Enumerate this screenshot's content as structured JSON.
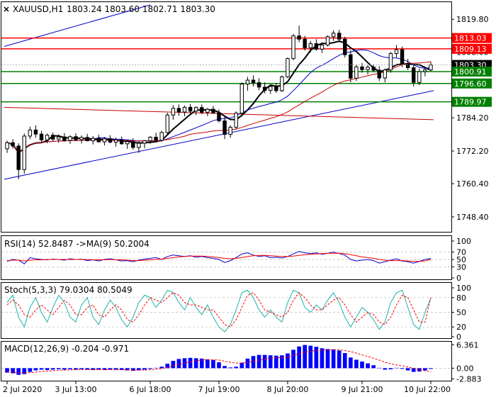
{
  "header": {
    "symbol": "XAUUSD,H1",
    "ohlc": "1803.24 1803.60 1802.71 1803.30"
  },
  "colors": {
    "background": "#ffffff",
    "candle": "#000000",
    "ma_fast": "#000000",
    "ma_mid": "#0000cc",
    "ma_slow": "#cc0000",
    "resistance": "#ff0000",
    "support": "#008000",
    "trend_channel": "#0000cc",
    "macd_hist": "#0000ff",
    "signal": "#ff0000",
    "stoch_main": "#20b2aa",
    "last_price": "#000000"
  },
  "chart_data": [
    {
      "type": "candlestick",
      "panel": "price",
      "symbol": "XAUUSD",
      "timeframe": "H1",
      "ohlc_last": {
        "open": 1803.24,
        "high": 1803.6,
        "low": 1802.71,
        "close": 1803.3
      },
      "ylim": [
        1743,
        1826
      ],
      "y_ticks": [
        "1819.80",
        "1808.00",
        "1796.20",
        "1784.20",
        "1772.20",
        "1760.40",
        "1748.40"
      ],
      "x_ticks": [
        "2 Jul 2020",
        "3 Jul 13:00",
        "6 Jul 18:00",
        "7 Jul 19:00",
        "8 Jul 20:00",
        "9 Jul 21:00",
        "10 Jul 22:00"
      ],
      "last_price_label": "1803.30",
      "levels": [
        {
          "label": "1813.03",
          "value": 1813.03,
          "color": "#ff0000",
          "kind": "resistance"
        },
        {
          "label": "1809.13",
          "value": 1809.13,
          "color": "#ff0000",
          "kind": "resistance"
        },
        {
          "label": "1800.91",
          "value": 1800.91,
          "color": "#008000",
          "kind": "support"
        },
        {
          "label": "1796.60",
          "value": 1796.6,
          "color": "#008000",
          "kind": "support"
        },
        {
          "label": "1789.97",
          "value": 1789.97,
          "color": "#008000",
          "kind": "support"
        }
      ],
      "series": [
        {
          "values": [
            [
              1773.0,
              1776.0,
              1771.5,
              1775.2
            ],
            [
              1775.2,
              1776.5,
              1773.0,
              1774.0
            ],
            [
              1774.0,
              1775.0,
              1762.0,
              1765.5
            ],
            [
              1765.5,
              1778.5,
              1764.0,
              1777.6
            ],
            [
              1777.6,
              1781.0,
              1776.5,
              1779.8
            ],
            [
              1779.8,
              1781.5,
              1777.0,
              1778.3
            ],
            [
              1778.3,
              1779.5,
              1775.5,
              1776.2
            ],
            [
              1776.2,
              1778.5,
              1775.0,
              1777.9
            ],
            [
              1777.9,
              1778.8,
              1775.8,
              1776.5
            ],
            [
              1776.5,
              1778.2,
              1775.2,
              1777.3
            ],
            [
              1777.3,
              1778.7,
              1775.6,
              1776.0
            ],
            [
              1776.0,
              1777.9,
              1774.8,
              1777.4
            ],
            [
              1777.4,
              1778.6,
              1775.9,
              1776.3
            ],
            [
              1776.3,
              1777.8,
              1774.9,
              1777.1
            ],
            [
              1777.1,
              1778.4,
              1775.7,
              1775.9
            ],
            [
              1775.9,
              1777.6,
              1774.6,
              1776.8
            ],
            [
              1776.8,
              1778.1,
              1775.3,
              1775.5
            ],
            [
              1775.5,
              1777.3,
              1774.2,
              1776.6
            ],
            [
              1776.6,
              1777.9,
              1775.0,
              1775.4
            ],
            [
              1775.4,
              1777.0,
              1773.8,
              1776.2
            ],
            [
              1776.2,
              1777.4,
              1774.5,
              1774.8
            ],
            [
              1774.8,
              1776.2,
              1773.0,
              1775.6
            ],
            [
              1775.6,
              1776.8,
              1772.8,
              1773.5
            ],
            [
              1773.5,
              1775.8,
              1771.5,
              1775.0
            ],
            [
              1775.0,
              1776.2,
              1773.2,
              1775.9
            ],
            [
              1775.9,
              1777.6,
              1774.8,
              1777.2
            ],
            [
              1777.2,
              1778.8,
              1775.6,
              1776.1
            ],
            [
              1776.1,
              1779.5,
              1775.5,
              1778.9
            ],
            [
              1778.9,
              1786.0,
              1778.0,
              1785.2
            ],
            [
              1785.2,
              1788.8,
              1783.5,
              1787.6
            ],
            [
              1787.6,
              1789.0,
              1785.0,
              1786.3
            ],
            [
              1786.3,
              1788.6,
              1784.8,
              1788.0
            ],
            [
              1788.0,
              1789.2,
              1785.8,
              1786.6
            ],
            [
              1786.6,
              1788.4,
              1785.2,
              1787.9
            ],
            [
              1787.9,
              1789.0,
              1785.5,
              1786.2
            ],
            [
              1786.2,
              1787.8,
              1784.8,
              1787.3
            ],
            [
              1787.3,
              1788.5,
              1785.6,
              1786.0
            ],
            [
              1786.0,
              1787.2,
              1782.5,
              1783.1
            ],
            [
              1783.1,
              1784.5,
              1776.5,
              1778.2
            ],
            [
              1778.2,
              1781.5,
              1777.0,
              1780.8
            ],
            [
              1780.8,
              1786.5,
              1780.0,
              1785.9
            ],
            [
              1785.9,
              1797.0,
              1785.0,
              1796.4
            ],
            [
              1796.4,
              1799.0,
              1794.0,
              1797.8
            ],
            [
              1797.8,
              1799.5,
              1795.5,
              1796.9
            ],
            [
              1796.9,
              1798.5,
              1794.2,
              1795.3
            ],
            [
              1795.3,
              1797.0,
              1793.0,
              1794.1
            ],
            [
              1794.1,
              1796.2,
              1792.8,
              1795.5
            ],
            [
              1795.5,
              1796.8,
              1793.2,
              1794.0
            ],
            [
              1794.0,
              1799.5,
              1793.5,
              1799.0
            ],
            [
              1799.0,
              1806.0,
              1798.5,
              1805.6
            ],
            [
              1805.6,
              1814.5,
              1805.0,
              1813.8
            ],
            [
              1813.8,
              1817.5,
              1811.5,
              1812.6
            ],
            [
              1812.6,
              1813.8,
              1808.5,
              1809.5
            ],
            [
              1809.5,
              1812.0,
              1807.8,
              1811.0
            ],
            [
              1811.0,
              1812.6,
              1808.4,
              1809.0
            ],
            [
              1809.0,
              1811.5,
              1807.6,
              1810.5
            ],
            [
              1810.5,
              1814.0,
              1810.0,
              1813.5
            ],
            [
              1813.5,
              1815.8,
              1812.0,
              1814.8
            ],
            [
              1814.8,
              1816.0,
              1811.5,
              1812.6
            ],
            [
              1812.6,
              1813.5,
              1806.0,
              1807.0
            ],
            [
              1807.0,
              1808.5,
              1797.0,
              1798.5
            ],
            [
              1798.5,
              1803.5,
              1797.5,
              1802.6
            ],
            [
              1802.6,
              1804.0,
              1800.5,
              1801.6
            ],
            [
              1801.6,
              1803.2,
              1799.8,
              1802.5
            ],
            [
              1802.5,
              1803.5,
              1800.8,
              1801.4
            ],
            [
              1801.4,
              1802.8,
              1797.5,
              1798.6
            ],
            [
              1798.6,
              1802.0,
              1797.0,
              1801.5
            ],
            [
              1801.5,
              1808.0,
              1800.5,
              1807.4
            ],
            [
              1807.4,
              1810.5,
              1806.0,
              1808.8
            ],
            [
              1808.8,
              1810.0,
              1802.5,
              1803.8
            ],
            [
              1803.8,
              1805.5,
              1801.5,
              1802.3
            ],
            [
              1802.3,
              1803.5,
              1795.5,
              1797.0
            ],
            [
              1797.0,
              1802.0,
              1796.0,
              1800.9
            ],
            [
              1800.9,
              1802.5,
              1799.2,
              1801.5
            ],
            [
              1801.5,
              1804.5,
              1801.0,
              1803.3
            ]
          ]
        }
      ]
    },
    {
      "type": "line",
      "panel": "rsi",
      "label": "RSI(14) 52.8487  ->MA(9) 50.2004",
      "y_ticks": [
        "100",
        "70",
        "50",
        "30",
        "0"
      ],
      "ylim": [
        0,
        100
      ],
      "series": [
        {
          "values": [
            45,
            50,
            48,
            38,
            55,
            52,
            50,
            49,
            51,
            50,
            48,
            52,
            50,
            51,
            47,
            49,
            46,
            50,
            52,
            49,
            46,
            47,
            44,
            48,
            51,
            53,
            55,
            50,
            58,
            62,
            60,
            58,
            60,
            56,
            58,
            55,
            53,
            50,
            42,
            47,
            55,
            65,
            68,
            62,
            58,
            60,
            55,
            56,
            54,
            58,
            65,
            72,
            68,
            66,
            68,
            64,
            67,
            70,
            66,
            62,
            50,
            46,
            48,
            50,
            47,
            40,
            44,
            48,
            52,
            46,
            44,
            40,
            45,
            50,
            52.85
          ]
        },
        {
          "values": [
            47,
            48,
            48,
            46,
            48,
            49,
            49,
            50,
            50,
            50,
            50,
            50,
            50,
            50,
            50,
            49,
            49,
            49,
            50,
            49,
            49,
            48,
            47,
            47,
            48,
            49,
            50,
            51,
            53,
            55,
            57,
            58,
            59,
            59,
            59,
            58,
            57,
            55,
            53,
            52,
            53,
            55,
            58,
            60,
            61,
            61,
            60,
            59,
            58,
            58,
            59,
            61,
            63,
            64,
            65,
            66,
            67,
            67,
            67,
            66,
            63,
            60,
            57,
            55,
            53,
            50,
            48,
            47,
            47,
            47,
            46,
            45,
            45,
            46,
            50.2
          ]
        }
      ]
    },
    {
      "type": "line",
      "panel": "stochastic",
      "label": "Stoch(5,3,3) 79.0304 80.5049",
      "y_ticks": [
        "100",
        "80",
        "50",
        "20",
        "0"
      ],
      "ylim": [
        0,
        100
      ],
      "series": [
        {
          "values": [
            70,
            85,
            40,
            20,
            60,
            80,
            50,
            30,
            60,
            85,
            70,
            40,
            30,
            65,
            80,
            40,
            25,
            55,
            75,
            60,
            35,
            20,
            40,
            70,
            85,
            80,
            60,
            75,
            95,
            90,
            70,
            55,
            80,
            60,
            45,
            65,
            40,
            20,
            10,
            25,
            55,
            90,
            95,
            80,
            55,
            40,
            55,
            40,
            30,
            70,
            95,
            90,
            60,
            50,
            65,
            55,
            75,
            90,
            70,
            40,
            20,
            40,
            60,
            50,
            35,
            15,
            30,
            70,
            90,
            95,
            60,
            25,
            15,
            50,
            79.03
          ]
        },
        {
          "values": [
            65,
            75,
            65,
            45,
            40,
            55,
            65,
            55,
            45,
            60,
            75,
            65,
            45,
            45,
            60,
            65,
            45,
            40,
            55,
            65,
            55,
            35,
            30,
            45,
            65,
            80,
            75,
            70,
            80,
            90,
            85,
            70,
            65,
            65,
            60,
            55,
            55,
            40,
            25,
            20,
            35,
            60,
            85,
            90,
            75,
            55,
            50,
            45,
            40,
            50,
            75,
            90,
            80,
            65,
            55,
            55,
            65,
            75,
            80,
            65,
            45,
            30,
            40,
            50,
            45,
            30,
            25,
            40,
            65,
            85,
            80,
            55,
            30,
            30,
            80.5
          ]
        }
      ]
    },
    {
      "type": "bar",
      "panel": "macd",
      "label": "MACD(12,26,9) -0.204 -0.971",
      "y_ticks": [
        "6.361",
        "0.00",
        "-2.883"
      ],
      "ylim": [
        -3.2,
        6.8
      ],
      "series": [
        {
          "values": [
            -1.2,
            -1.4,
            -1.8,
            -1.6,
            -1.0,
            -0.6,
            -0.4,
            -0.5,
            -0.4,
            -0.3,
            -0.4,
            -0.3,
            -0.4,
            -0.3,
            -0.4,
            -0.5,
            -0.4,
            -0.5,
            -0.4,
            -0.4,
            -0.5,
            -0.6,
            -0.7,
            -0.6,
            -0.4,
            -0.2,
            0.1,
            0.4,
            1.2,
            2.0,
            2.5,
            2.7,
            2.8,
            2.7,
            2.6,
            2.4,
            2.2,
            1.6,
            0.6,
            0.2,
            0.4,
            1.5,
            2.6,
            3.3,
            3.6,
            3.6,
            3.5,
            3.4,
            3.5,
            4.0,
            5.0,
            5.9,
            6.3,
            6.1,
            5.8,
            5.4,
            5.2,
            5.1,
            4.8,
            4.1,
            2.9,
            2.3,
            1.8,
            1.3,
            0.8,
            0.1,
            -0.4,
            -0.3,
            0.1,
            -0.2,
            -0.6,
            -1.0,
            -0.9,
            -0.6,
            -0.2
          ]
        },
        {
          "values": [
            -1.0,
            -1.1,
            -1.2,
            -1.3,
            -1.2,
            -1.1,
            -0.9,
            -0.8,
            -0.7,
            -0.6,
            -0.5,
            -0.5,
            -0.4,
            -0.4,
            -0.4,
            -0.4,
            -0.4,
            -0.4,
            -0.4,
            -0.4,
            -0.4,
            -0.5,
            -0.5,
            -0.5,
            -0.5,
            -0.4,
            -0.3,
            -0.1,
            0.2,
            0.6,
            1.0,
            1.4,
            1.7,
            2.0,
            2.2,
            2.3,
            2.3,
            2.2,
            1.9,
            1.6,
            1.4,
            1.4,
            1.6,
            1.9,
            2.2,
            2.5,
            2.7,
            2.8,
            2.9,
            3.1,
            3.5,
            3.9,
            4.3,
            4.6,
            4.8,
            4.9,
            5.0,
            5.0,
            5.0,
            4.8,
            4.5,
            4.1,
            3.6,
            3.2,
            2.7,
            2.2,
            1.6,
            1.2,
            0.9,
            0.6,
            0.3,
            0.0,
            -0.4,
            -0.7,
            -0.97
          ]
        }
      ]
    }
  ]
}
